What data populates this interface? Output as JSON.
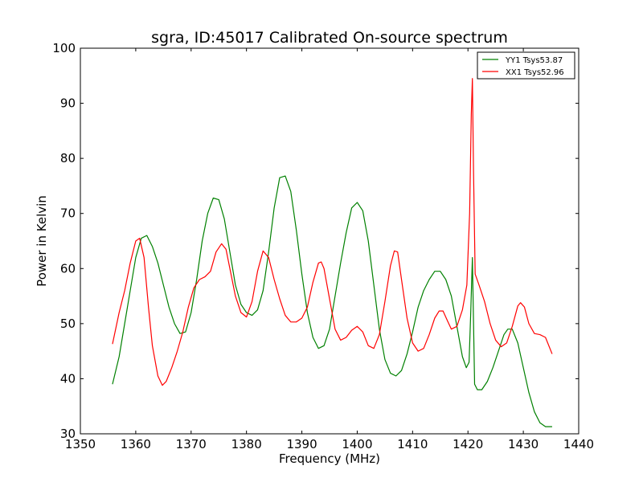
{
  "chart_data": {
    "type": "line",
    "title": "sgra, ID:45017 Calibrated On-source spectrum",
    "xlabel": "Frequency (MHz)",
    "ylabel": "Power in Kelvin",
    "xlim": [
      1350,
      1440
    ],
    "ylim": [
      30,
      100
    ],
    "xticks": [
      "1350",
      "1360",
      "1370",
      "1380",
      "1390",
      "1400",
      "1410",
      "1420",
      "1430",
      "1440"
    ],
    "yticks": [
      "30",
      "40",
      "50",
      "60",
      "70",
      "80",
      "90",
      "100"
    ],
    "grid": false,
    "legend_position": "top-right",
    "series": [
      {
        "name": "YY1 Tsys53.87",
        "color": "#008000",
        "x": [
          1355.8,
          1357,
          1358,
          1359,
          1360,
          1361,
          1362,
          1363,
          1364,
          1365,
          1366,
          1367,
          1368,
          1369,
          1370,
          1371,
          1372,
          1373,
          1374,
          1375,
          1376,
          1377,
          1378,
          1379,
          1380,
          1381,
          1382,
          1383,
          1384,
          1385,
          1386,
          1387,
          1388,
          1389,
          1390,
          1391,
          1392,
          1393,
          1394,
          1395,
          1396,
          1397,
          1398,
          1399,
          1400,
          1401,
          1402,
          1403,
          1404,
          1405,
          1406,
          1407,
          1408,
          1409,
          1410,
          1411,
          1412,
          1413,
          1414,
          1415,
          1416,
          1417,
          1418,
          1419,
          1419.7,
          1420.2,
          1420.5,
          1420.8,
          1421.2,
          1421.7,
          1422.5,
          1423.5,
          1424.5,
          1425.5,
          1426.5,
          1427.2,
          1428,
          1429,
          1430,
          1431,
          1432,
          1433,
          1434,
          1435.2
        ],
        "y": [
          39,
          44,
          50,
          56,
          62,
          65.5,
          66,
          64,
          61,
          57,
          53,
          50,
          48.2,
          48.5,
          52,
          58,
          65,
          70,
          72.8,
          72.5,
          69,
          63,
          57,
          53.5,
          52,
          51.5,
          52.5,
          56,
          63,
          71,
          76.5,
          76.8,
          74,
          67,
          59,
          52,
          47.5,
          45.5,
          46,
          49,
          55,
          61,
          66.5,
          71,
          72,
          70.5,
          65,
          57,
          49,
          43.5,
          41,
          40.5,
          41.5,
          44.5,
          48.5,
          53,
          56,
          58,
          59.5,
          59.5,
          58,
          55,
          49.5,
          44,
          42,
          43,
          52,
          62,
          39,
          38,
          38,
          39.5,
          42,
          45,
          48,
          49,
          49,
          46.5,
          42,
          37.5,
          34,
          32,
          31.3,
          31.3
        ]
      },
      {
        "name": "XX1 Tsys52.96",
        "color": "#ff0000",
        "x": [
          1355.8,
          1357,
          1358,
          1359,
          1360,
          1360.7,
          1361.5,
          1362.3,
          1363,
          1364,
          1364.8,
          1365.5,
          1366.5,
          1367.5,
          1368.5,
          1369.5,
          1370.5,
          1371.5,
          1372.5,
          1373.5,
          1374.5,
          1375.5,
          1376.3,
          1377,
          1378,
          1379,
          1380,
          1381,
          1382,
          1383,
          1384,
          1385,
          1386,
          1387,
          1388,
          1389,
          1390,
          1391,
          1392,
          1393,
          1393.5,
          1394,
          1395,
          1396,
          1397,
          1398,
          1399,
          1400,
          1401,
          1402,
          1403,
          1404,
          1405,
          1406,
          1406.7,
          1407.3,
          1408,
          1409,
          1410,
          1411,
          1412,
          1413,
          1414,
          1414.8,
          1415.5,
          1416.3,
          1417,
          1418,
          1419,
          1419.8,
          1420.3,
          1420.6,
          1420.8,
          1421,
          1421.3,
          1422,
          1423,
          1424,
          1425,
          1426,
          1427,
          1428,
          1429,
          1429.5,
          1430.2,
          1431,
          1432,
          1433,
          1434,
          1435.2
        ],
        "y": [
          46.3,
          52,
          56,
          61,
          65,
          65.5,
          62,
          53,
          46,
          40.5,
          38.8,
          39.5,
          42,
          45,
          48.5,
          53,
          56.5,
          58,
          58.5,
          59.5,
          63,
          64.5,
          63.5,
          60,
          55,
          52,
          51.2,
          54,
          59.5,
          63.2,
          62,
          58,
          54.5,
          51.5,
          50.3,
          50.3,
          51,
          53,
          57.5,
          61,
          61.2,
          60,
          54.5,
          49,
          47,
          47.5,
          48.8,
          49.5,
          48.5,
          46,
          45.5,
          48,
          54,
          60.5,
          63.2,
          63,
          58,
          51,
          46.5,
          45,
          45.5,
          48,
          51,
          52.3,
          52.3,
          50.5,
          49,
          49.5,
          52.5,
          57,
          70,
          88,
          94.5,
          78,
          59,
          57,
          54,
          50,
          47,
          45.8,
          46.5,
          49.5,
          53.2,
          53.8,
          53,
          50,
          48.2,
          48,
          47.5,
          44.5
        ]
      }
    ]
  }
}
